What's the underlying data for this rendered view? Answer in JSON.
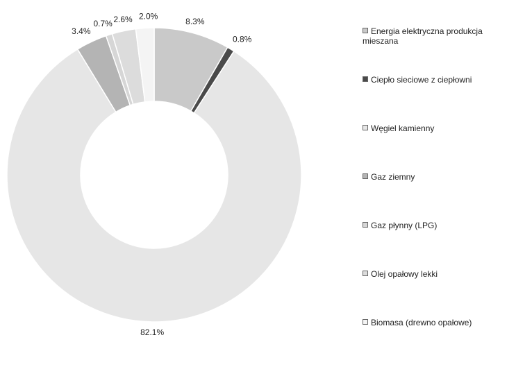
{
  "chart_data": {
    "type": "donut",
    "categories": [
      "Energia elektryczna produkcja mieszana",
      "Ciepło sieciowe z ciepłowni",
      "Węgiel kamienny",
      "Gaz ziemny",
      "Gaz płynny (LPG)",
      "Olej opałowy lekki",
      "Biomasa (drewno opałowe)"
    ],
    "values": [
      8.3,
      0.8,
      82.1,
      3.4,
      0.7,
      2.6,
      2.0
    ],
    "value_labels": [
      "8.3%",
      "0.8%",
      "82.1%",
      "3.4%",
      "0.7%",
      "2.6%",
      "2.0%"
    ],
    "colors": [
      "#c9c9c9",
      "#4a4a4a",
      "#e6e6e6",
      "#b4b4b4",
      "#d6d6d6",
      "#dcdcdc",
      "#f4f4f4"
    ],
    "legend": "right"
  }
}
